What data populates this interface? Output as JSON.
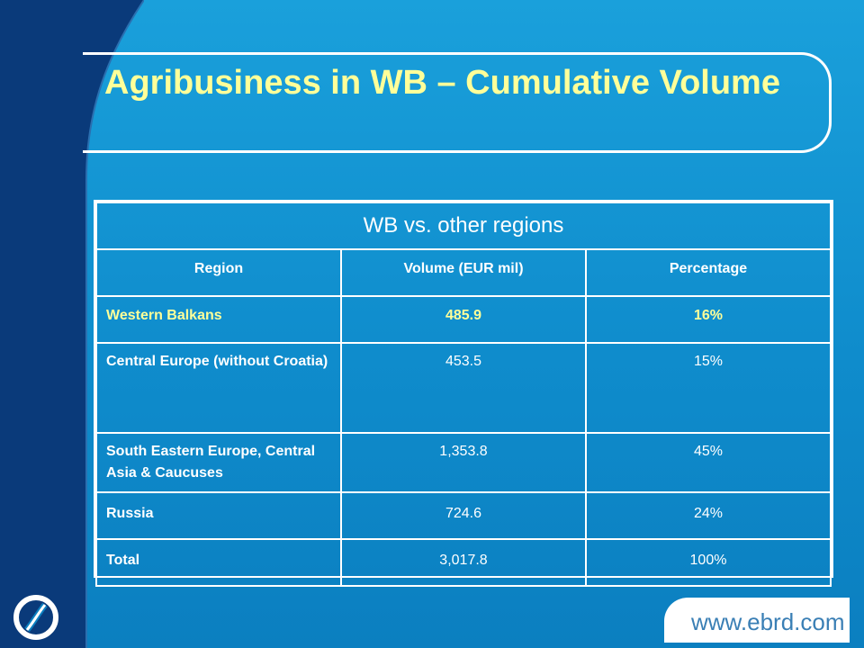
{
  "slide": {
    "title": "Agribusiness in WB – Cumulative Volume",
    "colors": {
      "background": "#1098d6",
      "band": "#0a3a7a",
      "title": "#ffff99",
      "text": "#ffffff",
      "highlight": "#ffff99"
    }
  },
  "table": {
    "caption": "WB vs. other regions",
    "headers": [
      "Region",
      "Volume (EUR mil)",
      "Percentage"
    ],
    "rows": [
      {
        "region": "Western Balkans",
        "volume": "485.9",
        "percentage": "16%"
      },
      {
        "region": "Central Europe (without Croatia)",
        "volume": "453.5",
        "percentage": "15%"
      },
      {
        "region": "South Eastern Europe, Central Asia & Caucuses",
        "volume": "1,353.8",
        "percentage": "45%"
      },
      {
        "region": "Russia",
        "volume": "724.6",
        "percentage": "24%"
      },
      {
        "region": "Total",
        "volume": "3,017.8",
        "percentage": "100%"
      }
    ]
  },
  "footer": {
    "logo_icon": "ebrd-logo-icon",
    "website": "www.ebrd.com"
  }
}
